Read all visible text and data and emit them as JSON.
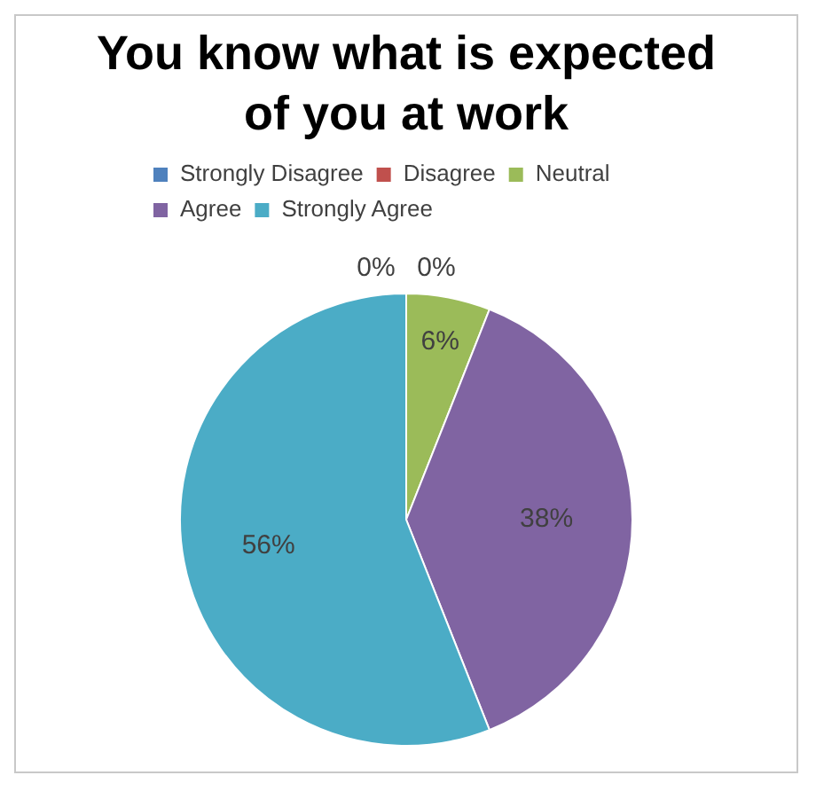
{
  "chart_data": {
    "type": "pie",
    "title": "You know what is expected of you at work",
    "categories": [
      "Strongly Disagree",
      "Disagree",
      "Neutral",
      "Agree",
      "Strongly Agree"
    ],
    "values": [
      0,
      0,
      6,
      38,
      56
    ],
    "colors": [
      "#4f81bd",
      "#c0504d",
      "#9bbb59",
      "#8064a2",
      "#4bacc6"
    ],
    "value_labels": [
      "0%",
      "0%",
      "6%",
      "38%",
      "56%"
    ],
    "legend": "top"
  }
}
